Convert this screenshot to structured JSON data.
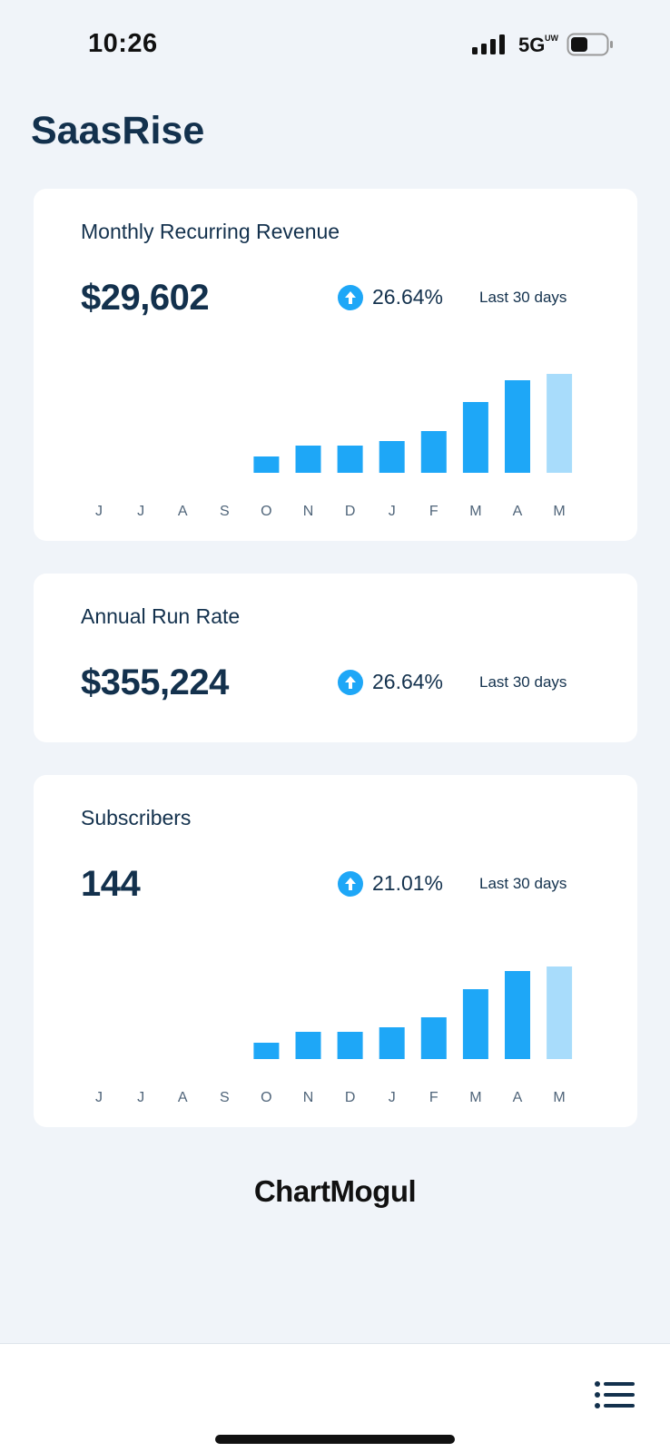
{
  "status_bar": {
    "time": "10:26",
    "network": "5G",
    "network_sub": "UW"
  },
  "app": {
    "title": "SaasRise"
  },
  "colors": {
    "bar": "#1ea7f7",
    "bar_current": "#a8dcfb",
    "trend_up": "#1ea7f7"
  },
  "cards": [
    {
      "title": "Monthly Recurring Revenue",
      "value": "$29,602",
      "trend_icon": "arrow-up-circle-icon",
      "trend": "26.64%",
      "period": "Last 30 days"
    },
    {
      "title": "Annual Run Rate",
      "value": "$355,224",
      "trend_icon": "arrow-up-circle-icon",
      "trend": "26.64%",
      "period": "Last 30 days"
    },
    {
      "title": "Subscribers",
      "value": "144",
      "trend_icon": "arrow-up-circle-icon",
      "trend": "21.01%",
      "period": "Last 30 days"
    }
  ],
  "chart_data": [
    {
      "type": "bar",
      "categories": [
        "J",
        "J",
        "A",
        "S",
        "O",
        "N",
        "D",
        "J",
        "F",
        "M",
        "A",
        "M"
      ],
      "values": [
        0,
        0,
        0,
        0,
        18,
        30,
        30,
        35,
        46,
        78,
        102,
        109
      ],
      "highlight_last": true,
      "ylim": [
        0,
        110
      ],
      "grid": false
    },
    {
      "type": "bar",
      "categories": [
        "J",
        "J",
        "A",
        "S",
        "O",
        "N",
        "D",
        "J",
        "F",
        "M",
        "A",
        "M"
      ],
      "values": [
        0,
        0,
        0,
        0,
        18,
        30,
        30,
        35,
        46,
        77,
        97,
        102
      ],
      "highlight_last": true,
      "ylim": [
        0,
        110
      ],
      "grid": false
    }
  ],
  "footer": {
    "brand": "ChartMogul"
  },
  "bottom_bar": {
    "menu_icon": "list-menu-icon"
  }
}
